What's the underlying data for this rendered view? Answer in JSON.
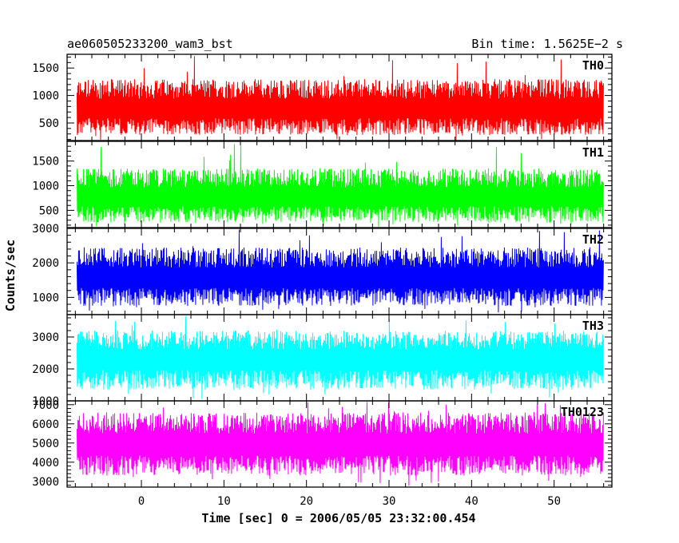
{
  "header": {
    "left_title": "ae060505233200_wam3_bst",
    "right_title": "Bin time: 1.5625E−2 s"
  },
  "chart_data": {
    "type": "line",
    "xlabel": "Time [sec] 0 = 2006/05/05 23:32:00.454",
    "ylabel": "Counts/sec",
    "xlim": [
      -9,
      57
    ],
    "x_ticks": [
      0,
      10,
      20,
      30,
      40,
      50
    ],
    "x_range": [
      -7.8,
      56.0
    ],
    "panels": [
      {
        "name": "TH0",
        "color": "#ff0000",
        "ylim": [
          180,
          1750
        ],
        "y_ticks": [
          500,
          1000,
          1500
        ],
        "mean": 750,
        "low": 280,
        "high": 1300,
        "spike_max": 1750,
        "spike_min": 180
      },
      {
        "name": "TH1",
        "color": "#00ff00",
        "ylim": [
          150,
          1900
        ],
        "y_ticks": [
          500,
          1000,
          1500
        ],
        "mean": 760,
        "low": 250,
        "high": 1350,
        "spike_max": 1850,
        "spike_min": 150
      },
      {
        "name": "TH2",
        "color": "#0000ff",
        "ylim": [
          500,
          3000
        ],
        "y_ticks": [
          1000,
          2000,
          3000
        ],
        "mean": 1550,
        "low": 750,
        "high": 2450,
        "spike_max": 3000,
        "spike_min": 550
      },
      {
        "name": "TH3",
        "color": "#00ffff",
        "ylim": [
          1000,
          3700
        ],
        "y_ticks": [
          1000,
          2000,
          3000
        ],
        "mean": 2300,
        "low": 1350,
        "high": 3200,
        "spike_max": 3650,
        "spike_min": 1050
      },
      {
        "name": "TH0123",
        "color": "#ff00ff",
        "ylim": [
          2700,
          7200
        ],
        "y_ticks": [
          3000,
          4000,
          5000,
          6000,
          7000
        ],
        "mean": 4900,
        "low": 3300,
        "high": 6600,
        "spike_max": 7150,
        "spike_min": 2750
      }
    ]
  }
}
